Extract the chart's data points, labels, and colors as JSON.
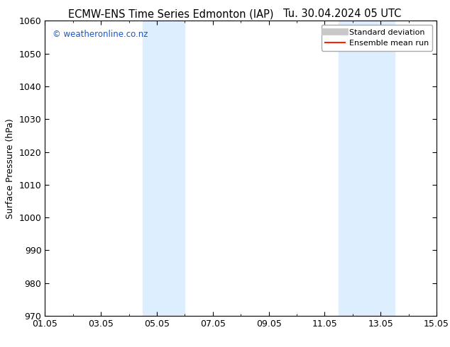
{
  "title_left": "ECMW-ENS Time Series Edmonton (IAP)",
  "title_right": "Tu. 30.04.2024 05 UTC",
  "ylabel": "Surface Pressure (hPa)",
  "ylim": [
    970,
    1060
  ],
  "yticks": [
    970,
    980,
    990,
    1000,
    1010,
    1020,
    1030,
    1040,
    1050,
    1060
  ],
  "xlim": [
    0,
    14
  ],
  "xtick_labels": [
    "01.05",
    "03.05",
    "05.05",
    "07.05",
    "09.05",
    "11.05",
    "13.05",
    "15.05"
  ],
  "xtick_positions": [
    0,
    2,
    4,
    6,
    8,
    10,
    12,
    14
  ],
  "shaded_bands": [
    {
      "x_start": 3.5,
      "x_end": 5.0
    },
    {
      "x_start": 10.5,
      "x_end": 12.5
    }
  ],
  "shade_color": "#ddeeff",
  "watermark_text": "© weatheronline.co.nz",
  "watermark_color": "#1a56cc",
  "legend_items": [
    {
      "label": "Standard deviation",
      "color": "#c8c8c8",
      "lw": 7,
      "linestyle": "-"
    },
    {
      "label": "Ensemble mean run",
      "color": "#ff2200",
      "lw": 1.5,
      "linestyle": "-"
    }
  ],
  "background_color": "#ffffff",
  "title_fontsize": 10.5,
  "ylabel_fontsize": 9,
  "tick_fontsize": 9,
  "watermark_fontsize": 8.5,
  "legend_fontsize": 8,
  "spine_color": "#000000",
  "figsize": [
    6.34,
    4.9
  ],
  "dpi": 100
}
